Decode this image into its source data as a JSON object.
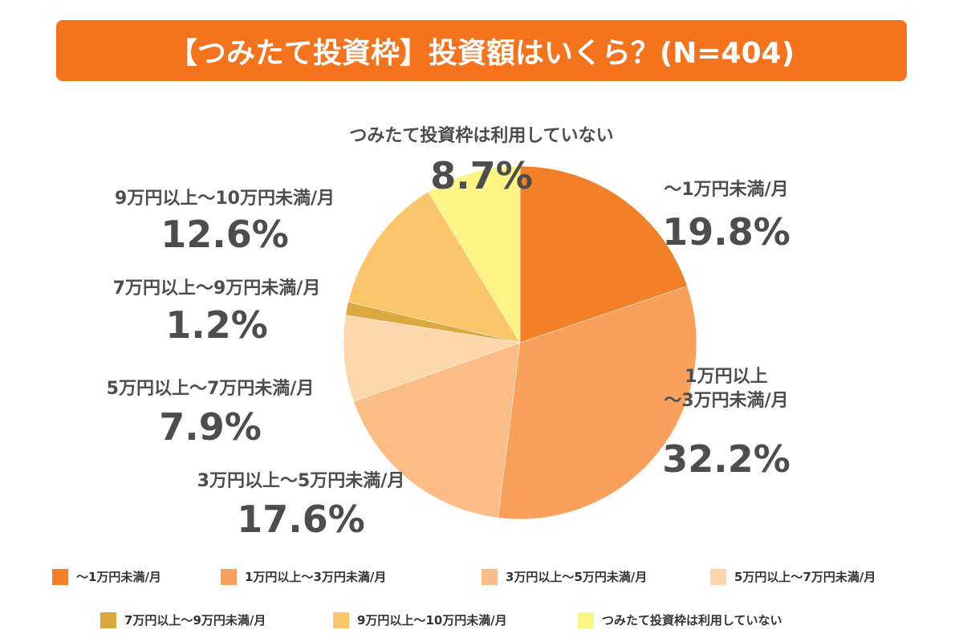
{
  "chart_data": {
    "type": "pie",
    "title": "【つみたて投資枠】投資額はいくら？(N=404)",
    "categories": [
      "〜1万円未満/月",
      "1万円以上〜3万円未満/月",
      "3万円以上〜5万円未満/月",
      "5万円以上〜7万円未満/月",
      "7万円以上〜9万円未満/月",
      "9万円以上〜10万円未満/月",
      "つみたて投資枠は利用していない"
    ],
    "labels": [
      "〜1万円未満/月",
      "1万円以上\n〜3万円未満/月",
      "3万円以上〜5万円未満/月",
      "5万円以上〜7万円未満/月",
      "7万円以上〜9万円未満/月",
      "9万円以上〜10万円未満/月",
      "つみたて投資枠は利用していない"
    ],
    "values": [
      19.8,
      32.2,
      17.6,
      7.9,
      1.2,
      12.6,
      8.7
    ],
    "value_labels": [
      "19.8%",
      "32.2%",
      "17.6%",
      "7.9%",
      "1.2%",
      "12.6%",
      "8.7%"
    ],
    "colors": [
      "#f28029",
      "#f9a05d",
      "#fbbd85",
      "#fcd7ac",
      "#dca840",
      "#fbc66a",
      "#fef585"
    ]
  }
}
